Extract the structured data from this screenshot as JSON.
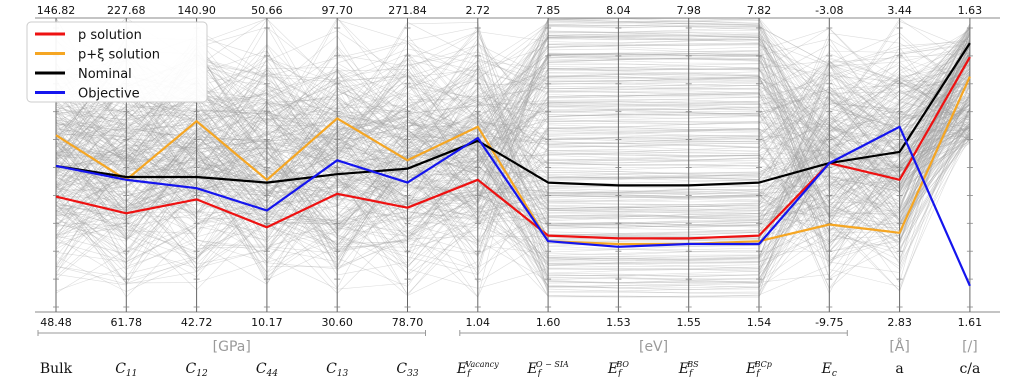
{
  "chart_data": {
    "type": "parallel_coordinates",
    "axes": [
      {
        "name": "Bulk",
        "top": "146.82",
        "bottom": "48.48"
      },
      {
        "name": "C",
        "sub": "11",
        "top": "227.68",
        "bottom": "61.78"
      },
      {
        "name": "C",
        "sub": "12",
        "top": "140.90",
        "bottom": "42.72"
      },
      {
        "name": "C",
        "sub": "44",
        "top": "50.66",
        "bottom": "10.17"
      },
      {
        "name": "C",
        "sub": "13",
        "top": "97.70",
        "bottom": "30.60"
      },
      {
        "name": "C",
        "sub": "33",
        "top": "271.84",
        "bottom": "78.70"
      },
      {
        "name": "E",
        "sub": "f",
        "sup": "Vacancy",
        "top": "2.72",
        "bottom": "1.04"
      },
      {
        "name": "E",
        "sub": "f",
        "sup": "O − SIA",
        "top": "7.85",
        "bottom": "1.60"
      },
      {
        "name": "E",
        "sub": "f",
        "sup": "BO",
        "top": "8.04",
        "bottom": "1.53"
      },
      {
        "name": "E",
        "sub": "f",
        "sup": "BS",
        "top": "7.98",
        "bottom": "1.55"
      },
      {
        "name": "E",
        "sub": "f",
        "sup": "BCp",
        "top": "7.82",
        "bottom": "1.54"
      },
      {
        "name": "E",
        "sub": "c",
        "top": "-3.08",
        "bottom": "-9.75"
      },
      {
        "name": "a",
        "top": "3.44",
        "bottom": "2.83"
      },
      {
        "name": "c/a",
        "top": "1.63",
        "bottom": "1.61"
      }
    ],
    "unit_groups": [
      {
        "label": "[GPa]",
        "from": 0,
        "to": 5
      },
      {
        "label": "[eV]",
        "from": 6,
        "to": 11
      },
      {
        "label": "[Å]",
        "from": 12,
        "to": 12
      },
      {
        "label": "[/]",
        "from": 13,
        "to": 13
      }
    ],
    "series": [
      {
        "name": "p  solution",
        "color": "#ee1111",
        "values": [
          0.36,
          0.3,
          0.35,
          0.25,
          0.37,
          0.32,
          0.42,
          0.22,
          0.21,
          0.21,
          0.22,
          0.48,
          0.42,
          0.86
        ]
      },
      {
        "name": "p+ξ solution",
        "color": "#f5a623",
        "values": [
          0.58,
          0.42,
          0.63,
          0.42,
          0.64,
          0.49,
          0.61,
          0.2,
          0.19,
          0.19,
          0.2,
          0.26,
          0.23,
          0.79
        ]
      },
      {
        "name": "Nominal",
        "color": "#000000",
        "values": [
          0.47,
          0.43,
          0.43,
          0.41,
          0.44,
          0.46,
          0.56,
          0.41,
          0.4,
          0.4,
          0.41,
          0.48,
          0.52,
          0.91
        ]
      },
      {
        "name": "Objective",
        "color": "#1515ee",
        "values": [
          0.47,
          0.42,
          0.39,
          0.31,
          0.49,
          0.41,
          0.57,
          0.2,
          0.18,
          0.19,
          0.19,
          0.48,
          0.61,
          0.04
        ]
      }
    ],
    "background": {
      "color": "#9e9e9e",
      "description_count_approx": 300
    },
    "legend": {
      "position": "top-left"
    },
    "ylim": [
      0,
      1
    ]
  }
}
